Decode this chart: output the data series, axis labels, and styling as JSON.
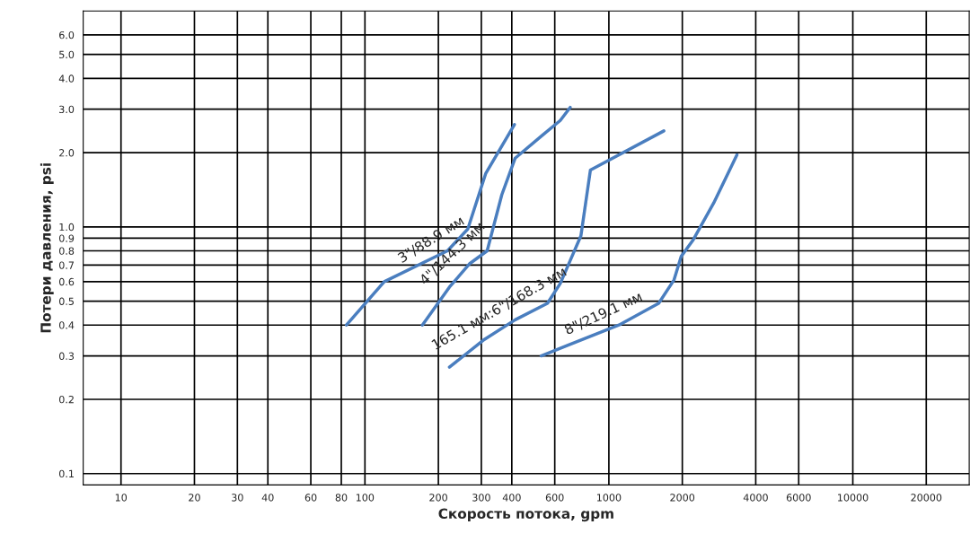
{
  "chart_data": {
    "type": "line",
    "xlabel": "Скорость потока, gpm",
    "ylabel": "Потери давления, psi",
    "log": "xy",
    "grid": true,
    "line_style": "solid",
    "marker": "none",
    "xlim": [
      7,
      30000
    ],
    "ylim": [
      0.09,
      7.5
    ],
    "xticks": [
      10,
      20,
      30,
      40,
      60,
      80,
      100,
      200,
      300,
      400,
      600,
      1000,
      2000,
      4000,
      6000,
      10000,
      20000
    ],
    "yticks": [
      {
        "value": 0.1,
        "label": "0.1"
      },
      {
        "value": 0.2,
        "label": "0.2"
      },
      {
        "value": 0.3,
        "label": "0.3"
      },
      {
        "value": 0.4,
        "label": "0.4"
      },
      {
        "value": 0.5,
        "label": "0.5"
      },
      {
        "value": 0.6,
        "label": "0.6"
      },
      {
        "value": 0.7,
        "label": "0.7"
      },
      {
        "value": 0.8,
        "label": "0.8"
      },
      {
        "value": 0.9,
        "label": "0.9"
      },
      {
        "value": 1,
        "label": "1.0"
      },
      {
        "value": 2,
        "label": "2.0"
      },
      {
        "value": 3,
        "label": "3.0"
      },
      {
        "value": 4,
        "label": "4.0"
      },
      {
        "value": 5,
        "label": "5.0"
      },
      {
        "value": 6,
        "label": "6.0"
      }
    ],
    "series": [
      {
        "name": "3\"/88.9 мм",
        "color": "#4a7ebf",
        "x": [
          84,
          120,
          218,
          264,
          313,
          410
        ],
        "values": [
          0.4,
          0.6,
          0.8,
          0.98,
          1.65,
          2.6
        ]
      },
      {
        "name": "4\"/144.3 мм",
        "color": "#4a7ebf",
        "x": [
          172,
          222,
          269,
          317,
          364,
          413,
          533,
          632,
          694
        ],
        "values": [
          0.4,
          0.57,
          0.71,
          0.8,
          1.35,
          1.9,
          2.35,
          2.7,
          3.05
        ]
      },
      {
        "name": "165.1 мм:6\"/168.3 мм",
        "color": "#4a7ebf",
        "x": [
          222,
          309,
          413,
          560,
          632,
          694,
          768,
          840,
          1680
        ],
        "values": [
          0.27,
          0.35,
          0.42,
          0.49,
          0.59,
          0.73,
          0.92,
          1.7,
          2.45
        ]
      },
      {
        "name": "8\"/219.1 мм",
        "color": "#4a7ebf",
        "x": [
          528,
          673,
          1100,
          1600,
          1850,
          1980,
          2207,
          2690,
          3350
        ],
        "values": [
          0.3,
          0.33,
          0.4,
          0.49,
          0.61,
          0.76,
          0.88,
          1.25,
          1.96
        ]
      }
    ]
  }
}
